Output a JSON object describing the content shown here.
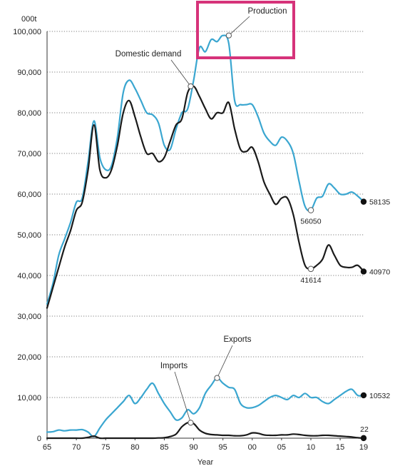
{
  "chart_data": {
    "type": "line",
    "unit_label": "000t",
    "xlabel": "Year",
    "ylabel": "",
    "x_ticks": [
      "65",
      "70",
      "75",
      "80",
      "85",
      "90",
      "95",
      "00",
      "05",
      "10",
      "15",
      "19"
    ],
    "y_ticks": [
      "0",
      "10,000",
      "20,000",
      "30,000",
      "40,000",
      "50,000",
      "60,000",
      "70,000",
      "80,000",
      "90,000",
      "100,000"
    ],
    "xlim": [
      1965,
      2019
    ],
    "ylim": [
      0,
      100000
    ],
    "grid": "horizontal-dotted",
    "colors": {
      "production": "#3aa6d0",
      "domestic_demand": "#1a1a1a",
      "exports": "#3aa6d0",
      "imports": "#1a1a1a",
      "highlight_box": "#d6337a"
    },
    "series": [
      {
        "name": "Production",
        "x": [
          1965,
          1966,
          1967,
          1968,
          1969,
          1970,
          1971,
          1972,
          1973,
          1974,
          1975,
          1976,
          1977,
          1978,
          1979,
          1980,
          1981,
          1982,
          1983,
          1984,
          1985,
          1986,
          1987,
          1988,
          1989,
          1990,
          1991,
          1992,
          1993,
          1994,
          1995,
          1996,
          1997,
          1998,
          1999,
          2000,
          2001,
          2002,
          2003,
          2004,
          2005,
          2006,
          2007,
          2008,
          2009,
          2010,
          2011,
          2012,
          2013,
          2014,
          2015,
          2016,
          2017,
          2018,
          2019
        ],
        "values": [
          33000,
          38000,
          45000,
          49000,
          53000,
          58000,
          59000,
          68000,
          78000,
          69000,
          66000,
          67000,
          74000,
          85000,
          88000,
          86000,
          83000,
          80000,
          79500,
          77500,
          72000,
          71000,
          76000,
          80000,
          81000,
          88000,
          96000,
          95000,
          98000,
          97500,
          99000,
          97000,
          83000,
          82000,
          82000,
          82000,
          79000,
          75000,
          73000,
          72000,
          74000,
          73000,
          70000,
          63000,
          57000,
          56050,
          59000,
          59500,
          62500,
          61500,
          60000,
          60000,
          60500,
          59500,
          58135
        ]
      },
      {
        "name": "Domestic demand",
        "x": [
          1965,
          1966,
          1967,
          1968,
          1969,
          1970,
          1971,
          1972,
          1973,
          1974,
          1975,
          1976,
          1977,
          1978,
          1979,
          1980,
          1981,
          1982,
          1983,
          1984,
          1985,
          1986,
          1987,
          1988,
          1989,
          1990,
          1991,
          1992,
          1993,
          1994,
          1995,
          1996,
          1997,
          1998,
          1999,
          2000,
          2001,
          2002,
          2003,
          2004,
          2005,
          2006,
          2007,
          2008,
          2009,
          2010,
          2011,
          2012,
          2013,
          2014,
          2015,
          2016,
          2017,
          2018,
          2019
        ],
        "values": [
          32000,
          37000,
          42000,
          47000,
          51000,
          56000,
          58000,
          66000,
          77000,
          66000,
          64000,
          66000,
          72000,
          80000,
          83000,
          79000,
          74000,
          70000,
          70000,
          68000,
          69000,
          73000,
          77000,
          78500,
          85000,
          86500,
          84000,
          81000,
          78500,
          80000,
          80000,
          82500,
          76000,
          71000,
          70500,
          71500,
          68000,
          63000,
          60000,
          57500,
          59000,
          59000,
          55000,
          48000,
          42500,
          41614,
          42500,
          44000,
          47500,
          45000,
          42500,
          42000,
          42000,
          42500,
          40970
        ]
      },
      {
        "name": "Exports",
        "x": [
          1965,
          1966,
          1967,
          1968,
          1969,
          1970,
          1971,
          1972,
          1973,
          1974,
          1975,
          1976,
          1977,
          1978,
          1979,
          1980,
          1981,
          1982,
          1983,
          1984,
          1985,
          1986,
          1987,
          1988,
          1989,
          1990,
          1991,
          1992,
          1993,
          1994,
          1995,
          1996,
          1997,
          1998,
          1999,
          2000,
          2001,
          2002,
          2003,
          2004,
          2005,
          2006,
          2007,
          2008,
          2009,
          2010,
          2011,
          2012,
          2013,
          2014,
          2015,
          2016,
          2017,
          2018,
          2019
        ],
        "values": [
          1500,
          1600,
          2000,
          1800,
          2000,
          2000,
          2100,
          1500,
          400,
          2500,
          4500,
          6000,
          7500,
          9000,
          10500,
          8500,
          10000,
          12000,
          13500,
          11000,
          8500,
          6500,
          4500,
          5000,
          7000,
          6000,
          7500,
          11000,
          13000,
          14800,
          13500,
          12500,
          12000,
          8500,
          7500,
          7500,
          8000,
          9000,
          10000,
          10500,
          10000,
          9500,
          10500,
          10000,
          11000,
          10000,
          10000,
          9000,
          8500,
          9500,
          10500,
          11500,
          12000,
          10500,
          10532
        ]
      },
      {
        "name": "Imports",
        "x": [
          1965,
          1966,
          1967,
          1968,
          1969,
          1970,
          1971,
          1972,
          1973,
          1974,
          1975,
          1976,
          1977,
          1978,
          1979,
          1980,
          1981,
          1982,
          1983,
          1984,
          1985,
          1986,
          1987,
          1988,
          1989,
          1990,
          1991,
          1992,
          1993,
          1994,
          1995,
          1996,
          1997,
          1998,
          1999,
          2000,
          2001,
          2002,
          2003,
          2004,
          2005,
          2006,
          2007,
          2008,
          2009,
          2010,
          2011,
          2012,
          2013,
          2014,
          2015,
          2016,
          2017,
          2018,
          2019
        ],
        "values": [
          0,
          0,
          0,
          0,
          0,
          0,
          0,
          200,
          500,
          0,
          0,
          0,
          0,
          0,
          0,
          0,
          0,
          0,
          0,
          50,
          100,
          400,
          1000,
          2800,
          3800,
          3600,
          2000,
          1200,
          900,
          800,
          700,
          700,
          600,
          600,
          800,
          1300,
          1200,
          800,
          700,
          700,
          800,
          800,
          1000,
          900,
          700,
          600,
          600,
          700,
          700,
          600,
          500,
          400,
          300,
          100,
          22
        ]
      }
    ],
    "annotations": [
      {
        "text": "Production",
        "year": 1996,
        "value": 99000,
        "box": true
      },
      {
        "text": "Domestic demand",
        "year": 1989.5,
        "value": 86500
      },
      {
        "text": "Exports",
        "year": 1994,
        "value": 14800
      },
      {
        "text": "Imports",
        "year": 1989.5,
        "value": 3800
      }
    ],
    "hollow_markers": [
      {
        "year": 2010,
        "value": 56050,
        "label": "56050"
      },
      {
        "year": 2010,
        "value": 41614,
        "label": "41614"
      }
    ],
    "end_markers": [
      {
        "year": 2019,
        "value": 58135,
        "label": "58135"
      },
      {
        "year": 2019,
        "value": 40970,
        "label": "40970"
      },
      {
        "year": 2019,
        "value": 10532,
        "label": "10532"
      },
      {
        "year": 2019,
        "value": 22,
        "label": "22"
      }
    ]
  }
}
